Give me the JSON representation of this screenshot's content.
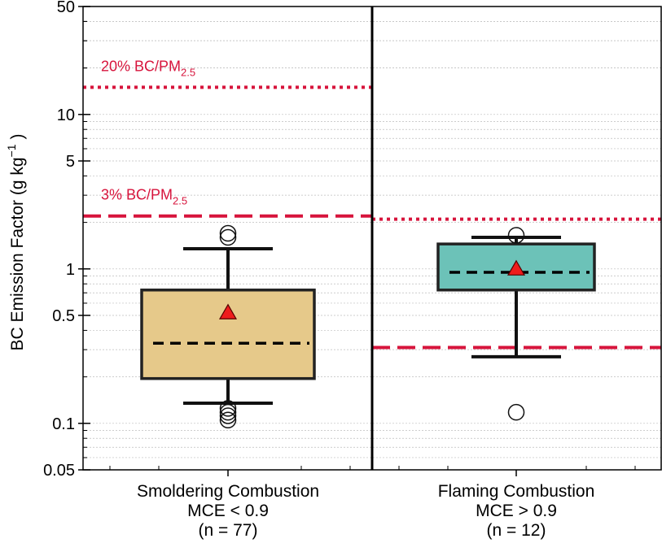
{
  "chart_data": {
    "type": "box",
    "yscale": "log",
    "ylim": [
      0.05,
      50
    ],
    "ylabel": "BC Emission Factor (g kg",
    "ylabel_sup": "−1",
    "ylabel_close": ")",
    "yticks": [
      0.05,
      0.1,
      0.5,
      1,
      5,
      10,
      50
    ],
    "ytick_labels": [
      "0.05",
      "0.1",
      "0.5",
      "1",
      "5",
      "10",
      "50"
    ],
    "grid": true,
    "colors": {
      "smoldering": "#e6c98a",
      "flaming": "#6cc2b8",
      "threshold": "#d7143c",
      "mean": "#ee1c1c"
    },
    "groups": [
      {
        "label_lines": [
          "Smoldering Combustion",
          "MCE < 0.9",
          "(n = 77)"
        ],
        "q1": 0.195,
        "median": 0.33,
        "q3": 0.73,
        "whisker_low": 0.135,
        "whisker_high": 1.35,
        "mean": 0.52,
        "outliers": [
          1.6,
          1.7,
          0.105,
          0.112,
          0.118,
          0.125
        ]
      },
      {
        "label_lines": [
          "Flaming Combustion",
          "MCE > 0.9",
          "(n = 12)"
        ],
        "q1": 0.73,
        "median": 0.95,
        "q3": 1.45,
        "whisker_low": 0.27,
        "whisker_high": 1.6,
        "mean": 1.0,
        "outliers": [
          1.65,
          0.118
        ]
      }
    ],
    "thresholds": [
      {
        "label_main": "20% BC/PM",
        "label_sub": "2.5",
        "style": "dotted",
        "smoldering": 15.0,
        "flaming": 2.1
      },
      {
        "label_main": "3% BC/PM",
        "label_sub": "2.5",
        "style": "dashed",
        "smoldering": 2.2,
        "flaming": 0.31
      }
    ]
  }
}
